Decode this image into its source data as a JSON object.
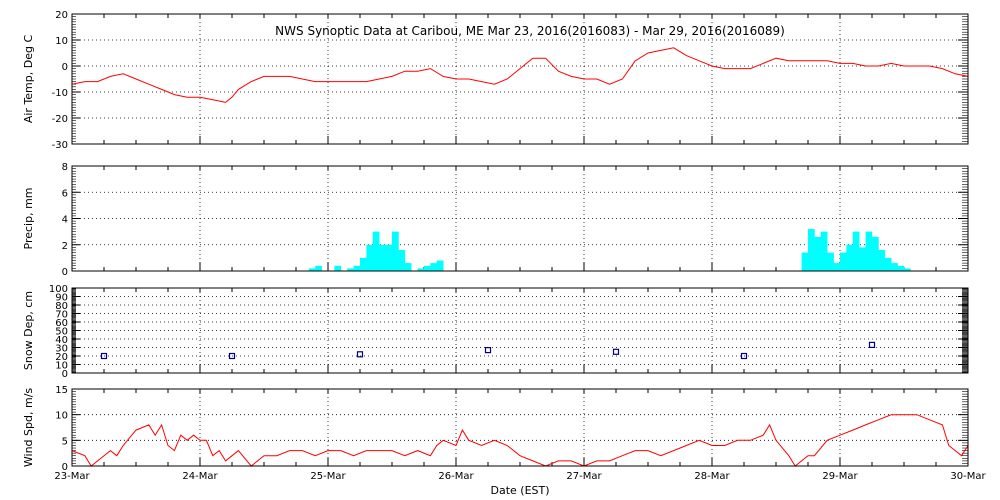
{
  "title": "NWS Synoptic Data at Caribou, ME   Mar 23, 2016(2016083) - Mar 29, 2016(2016089)",
  "xlabel": "Date (EST)",
  "chart_data": [
    {
      "type": "line",
      "ylabel": "Air Temp, Deg C",
      "xlim": [
        0,
        7
      ],
      "ylim": [
        -30,
        20
      ],
      "yticks": [
        -30,
        -20,
        -10,
        0,
        10,
        20
      ],
      "grid": true,
      "color": "#ff0000",
      "x": [
        0,
        0.1,
        0.2,
        0.3,
        0.4,
        0.5,
        0.6,
        0.7,
        0.8,
        0.9,
        1.0,
        1.1,
        1.2,
        1.25,
        1.3,
        1.4,
        1.5,
        1.6,
        1.7,
        1.8,
        1.9,
        2.0,
        2.2,
        2.3,
        2.4,
        2.5,
        2.6,
        2.7,
        2.8,
        2.9,
        3.0,
        3.1,
        3.2,
        3.3,
        3.4,
        3.5,
        3.6,
        3.7,
        3.8,
        3.9,
        4.0,
        4.1,
        4.2,
        4.3,
        4.4,
        4.5,
        4.6,
        4.7,
        4.8,
        4.9,
        5.0,
        5.1,
        5.2,
        5.3,
        5.4,
        5.5,
        5.6,
        5.7,
        5.8,
        5.9,
        6.0,
        6.1,
        6.2,
        6.3,
        6.4,
        6.5,
        6.6,
        6.7,
        6.8,
        6.9,
        7.0
      ],
      "values": [
        -7,
        -6,
        -6,
        -4,
        -3,
        -5,
        -7,
        -9,
        -11,
        -12,
        -12,
        -13,
        -14,
        -12,
        -9,
        -6,
        -4,
        -4,
        -4,
        -5,
        -6,
        -6,
        -6,
        -6,
        -5,
        -4,
        -2,
        -2,
        -1,
        -4,
        -5,
        -5,
        -6,
        -7,
        -5,
        -1,
        3,
        3,
        -2,
        -4,
        -5,
        -5,
        -7,
        -5,
        2,
        5,
        6,
        7,
        4,
        2,
        0,
        -1,
        -1,
        -1,
        1,
        3,
        2,
        2,
        2,
        2,
        1,
        1,
        0,
        0,
        1,
        0,
        0,
        0,
        -1,
        -3,
        -4
      ]
    },
    {
      "type": "bar",
      "ylabel": "Precip, mm",
      "xlim": [
        0,
        7
      ],
      "ylim": [
        0,
        8
      ],
      "yticks": [
        0,
        2,
        4,
        6,
        8
      ],
      "grid": true,
      "color": "#00ffff",
      "x": [
        1.85,
        1.9,
        1.95,
        2.0,
        2.05,
        2.1,
        2.15,
        2.2,
        2.25,
        2.3,
        2.35,
        2.4,
        2.45,
        2.5,
        2.55,
        2.6,
        2.65,
        2.7,
        2.75,
        2.8,
        2.85,
        2.9,
        2.95,
        5.7,
        5.75,
        5.8,
        5.85,
        5.9,
        5.95,
        6.0,
        6.05,
        6.1,
        6.15,
        6.2,
        6.25,
        6.3,
        6.35,
        6.4,
        6.45,
        6.5
      ],
      "values": [
        0.2,
        0.4,
        0,
        0,
        0.4,
        0,
        0.2,
        0.4,
        1.0,
        2.0,
        3.0,
        2.0,
        2.0,
        3.0,
        1.6,
        0.6,
        0,
        0.2,
        0.4,
        0.6,
        0.8,
        0,
        0,
        1.4,
        3.2,
        2.6,
        3.0,
        1.4,
        0.6,
        1.4,
        2.0,
        3.0,
        1.8,
        3.0,
        2.6,
        1.6,
        1.0,
        0.6,
        0.4,
        0.2
      ]
    },
    {
      "type": "scatter",
      "ylabel": "Snow Dep, cm",
      "xlim": [
        0,
        7
      ],
      "ylim": [
        0,
        100
      ],
      "yticks": [
        0,
        10,
        20,
        30,
        40,
        50,
        60,
        70,
        80,
        90,
        100
      ],
      "grid": true,
      "color": "#000080",
      "x": [
        0.25,
        1.25,
        2.25,
        3.25,
        4.25,
        5.25,
        6.25
      ],
      "values": [
        20,
        20,
        22,
        27,
        25,
        20,
        33
      ]
    },
    {
      "type": "line",
      "ylabel": "Wind Spd, m/s",
      "xlim": [
        0,
        7
      ],
      "ylim": [
        0,
        15
      ],
      "yticks": [
        0,
        5,
        10,
        15
      ],
      "grid": true,
      "color": "#ff0000",
      "x": [
        0,
        0.1,
        0.15,
        0.2,
        0.3,
        0.35,
        0.4,
        0.5,
        0.6,
        0.65,
        0.7,
        0.75,
        0.8,
        0.85,
        0.9,
        0.95,
        1.0,
        1.05,
        1.1,
        1.15,
        1.2,
        1.25,
        1.3,
        1.4,
        1.45,
        1.5,
        1.6,
        1.7,
        1.8,
        1.9,
        2.0,
        2.1,
        2.2,
        2.3,
        2.4,
        2.5,
        2.6,
        2.7,
        2.8,
        2.85,
        2.9,
        3.0,
        3.05,
        3.1,
        3.2,
        3.3,
        3.4,
        3.5,
        3.6,
        3.7,
        3.8,
        3.9,
        4.0,
        4.1,
        4.2,
        4.3,
        4.4,
        4.5,
        4.6,
        4.7,
        4.8,
        4.9,
        5.0,
        5.1,
        5.2,
        5.3,
        5.4,
        5.45,
        5.5,
        5.6,
        5.65,
        5.7,
        5.75,
        5.8,
        5.9,
        6.0,
        6.1,
        6.2,
        6.3,
        6.4,
        6.5,
        6.6,
        6.7,
        6.8,
        6.85,
        6.9,
        6.95,
        7.0
      ],
      "values": [
        3,
        2,
        0,
        1,
        3,
        2,
        4,
        7,
        8,
        6,
        8,
        4,
        3,
        6,
        5,
        6,
        5,
        5,
        2,
        3,
        1,
        2,
        3,
        0,
        1,
        2,
        2,
        3,
        3,
        2,
        3,
        3,
        2,
        3,
        3,
        3,
        2,
        3,
        2,
        4,
        5,
        4,
        7,
        5,
        4,
        5,
        4,
        2,
        1,
        0,
        1,
        1,
        0,
        1,
        1,
        2,
        3,
        3,
        2,
        3,
        4,
        5,
        4,
        4,
        5,
        5,
        6,
        8,
        5,
        2,
        0,
        1,
        2,
        2,
        5,
        6,
        7,
        8,
        9,
        10,
        10,
        10,
        9,
        8,
        4,
        3,
        2,
        4
      ]
    }
  ],
  "x_ticks": [
    "23-Mar",
    "24-Mar",
    "25-Mar",
    "26-Mar",
    "27-Mar",
    "28-Mar",
    "29-Mar",
    "30-Mar"
  ]
}
